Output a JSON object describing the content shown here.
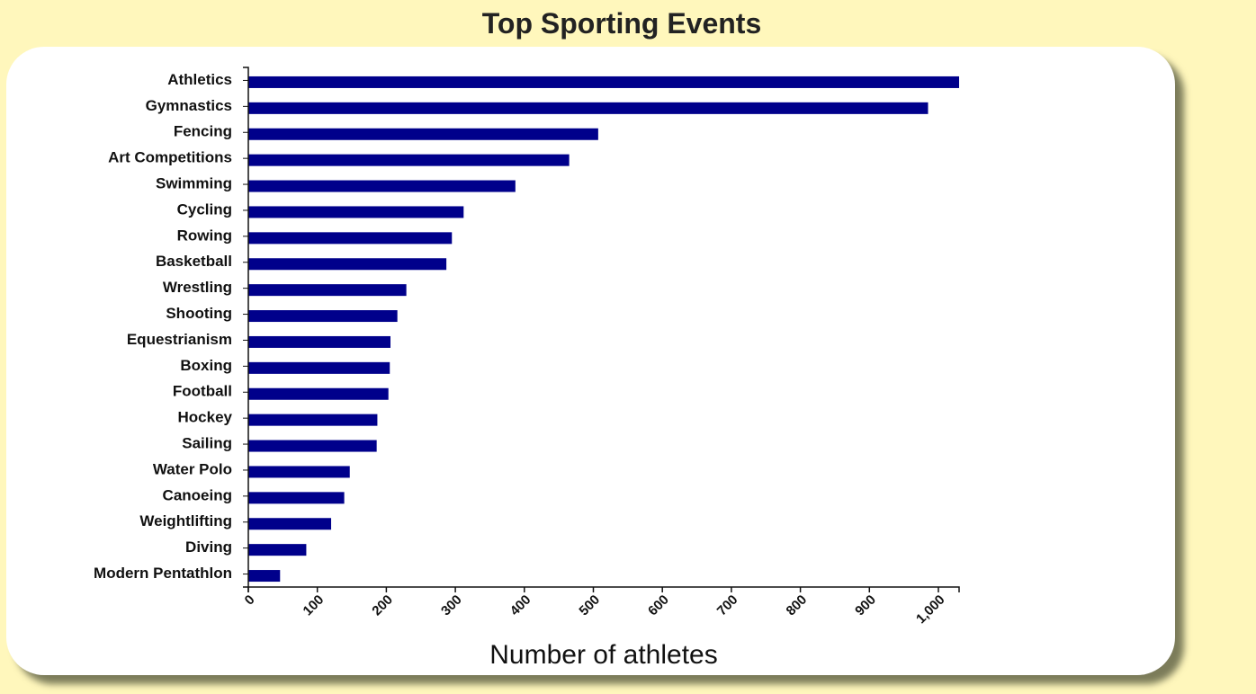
{
  "page": {
    "background": "#fff7bc",
    "card_background": "#ffffff"
  },
  "chart_data": {
    "type": "bar",
    "orientation": "horizontal",
    "title": "Top Sporting Events",
    "xlabel": "Number of athletes",
    "ylabel": "",
    "xlim": [
      0,
      1030
    ],
    "xticks": [
      0,
      100,
      200,
      300,
      400,
      500,
      600,
      700,
      800,
      900,
      1000
    ],
    "xtick_labels": [
      "0",
      "100",
      "200",
      "300",
      "400",
      "500",
      "600",
      "700",
      "800",
      "900",
      "1,000"
    ],
    "bar_color": "#00008b",
    "grid": false,
    "categories": [
      "Athletics",
      "Gymnastics",
      "Fencing",
      "Art Competitions",
      "Swimming",
      "Cycling",
      "Rowing",
      "Basketball",
      "Wrestling",
      "Shooting",
      "Equestrianism",
      "Boxing",
      "Football",
      "Hockey",
      "Sailing",
      "Water Polo",
      "Canoeing",
      "Weightlifting",
      "Diving",
      "Modern Pentathlon"
    ],
    "values": [
      1030,
      985,
      507,
      465,
      387,
      312,
      295,
      287,
      229,
      216,
      206,
      205,
      203,
      187,
      186,
      147,
      139,
      120,
      84,
      46
    ]
  }
}
